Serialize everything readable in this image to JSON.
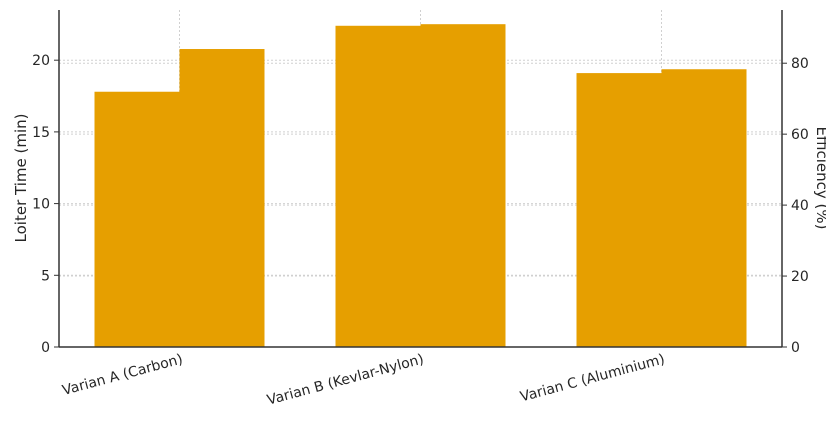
{
  "chart_data": {
    "type": "bar",
    "categories": [
      "Varian A (Carbon)",
      "Varian B (Kevlar-Nylon)",
      "Varian C (Aluminium)"
    ],
    "series": [
      {
        "values": [
          17.8,
          22.4,
          19.1
        ],
        "axis": "left",
        "color": "#e69f00"
      },
      {
        "values": [
          84,
          91,
          78.3
        ],
        "axis": "right",
        "color": "#e69f00"
      }
    ],
    "ylabel": "Loiter Time (min)",
    "ylabel_right": "Efficiency (%)",
    "ylim": [
      0,
      23.5
    ],
    "ylim_right": [
      0,
      95
    ],
    "yticks": [
      "0",
      "5",
      "10",
      "15",
      "20"
    ],
    "yticks_right": [
      "0",
      "20",
      "40",
      "60",
      "80"
    ],
    "ytick_values": [
      0,
      5,
      10,
      15,
      20
    ],
    "ytick_values_right": [
      0,
      20,
      40,
      60,
      80
    ],
    "grid": true,
    "legend": false
  }
}
